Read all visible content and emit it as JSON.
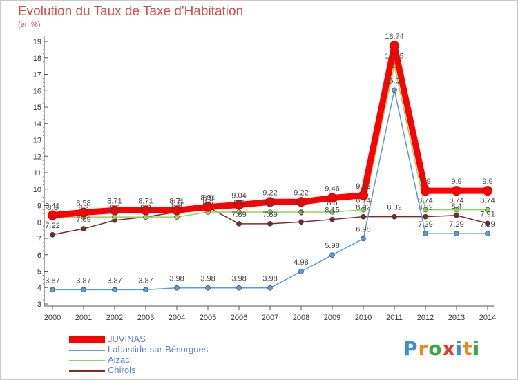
{
  "chart_data": {
    "type": "line",
    "title": "Evolution du Taux de Taxe d'Habitation",
    "ylabel": "(en %)",
    "ylim": [
      3,
      19
    ],
    "grid": false,
    "legend_position": "bottom-left",
    "categories": [
      "2000",
      "2001",
      "2002",
      "2003",
      "2004",
      "2005",
      "2006",
      "2007",
      "2008",
      "2009",
      "2010",
      "2011",
      "2012",
      "2013",
      "2014"
    ],
    "yticks": [
      "3",
      "4",
      "5",
      "6",
      "7",
      "8",
      "9",
      "10",
      "11",
      "12",
      "13",
      "14",
      "15",
      "16",
      "17",
      "18",
      "19"
    ],
    "series": [
      {
        "name": "JUVINAS",
        "color": "#ff0000",
        "values": [
          8.41,
          8.58,
          8.71,
          8.71,
          8.71,
          8.91,
          9.04,
          9.22,
          9.22,
          9.46,
          9.62,
          18.74,
          9.9,
          9.9,
          9.9
        ],
        "labels": [
          "8.41",
          "8.58",
          "8.71",
          "8.71",
          "8.71",
          "8.91",
          "9.04",
          "9.22",
          "9.22",
          "9.46",
          "9.62",
          "18.74",
          "9.9",
          "9.9",
          "9.9"
        ]
      },
      {
        "name": "Labastide-sur-Bésorgues",
        "color": "#5b9bd5",
        "values": [
          3.87,
          3.87,
          3.87,
          3.87,
          3.98,
          3.98,
          3.98,
          3.98,
          4.98,
          5.98,
          6.98,
          16.04,
          7.29,
          7.29,
          7.29
        ],
        "labels": [
          "3.87",
          "3.87",
          "3.87",
          "3.87",
          "3.98",
          "3.98",
          "3.98",
          "3.98",
          "4.98",
          "5.98",
          "6.98",
          "16.04",
          "7.29",
          "7.29",
          "7.29"
        ]
      },
      {
        "name": "Aizac",
        "color": "#8fd45f",
        "values": [
          8.3,
          8.3,
          8.3,
          8.3,
          8.3,
          8.6,
          8.6,
          8.6,
          8.6,
          8.6,
          8.74,
          17.55,
          8.74,
          8.74,
          8.74
        ],
        "labels": [
          "8.3",
          "8.3",
          "8.3",
          "8.3",
          "8.3",
          "8.6",
          "8.6",
          "8.6",
          "8.6",
          "8.6",
          "8.74",
          "17.55",
          "8.74",
          "8.74",
          "8.74"
        ]
      },
      {
        "name": "Chirols",
        "color": "#7a2a2a",
        "values": [
          7.22,
          7.59,
          8.1,
          8.3,
          8.6,
          8.9,
          7.89,
          7.89,
          8.0,
          8.15,
          8.32,
          8.32,
          8.32,
          8.4,
          7.91
        ],
        "labels": [
          "7.22",
          "7.59",
          "8.1",
          "8.3",
          "8.6",
          "8.9",
          "7.89",
          "7.89",
          "8",
          "8.15",
          "8.32",
          "8.32",
          "8.32",
          "8.4",
          "7.91"
        ]
      }
    ]
  },
  "logo": {
    "text": "Proxiti",
    "letters": [
      "P",
      "r",
      "o",
      "x",
      "i",
      "t",
      "i"
    ],
    "colors": [
      "#3a8fd8",
      "#e88a1a",
      "#3aa84a",
      "#e83a2a",
      "#3a8fd8",
      "#e88a1a",
      "#3aa84a"
    ]
  }
}
